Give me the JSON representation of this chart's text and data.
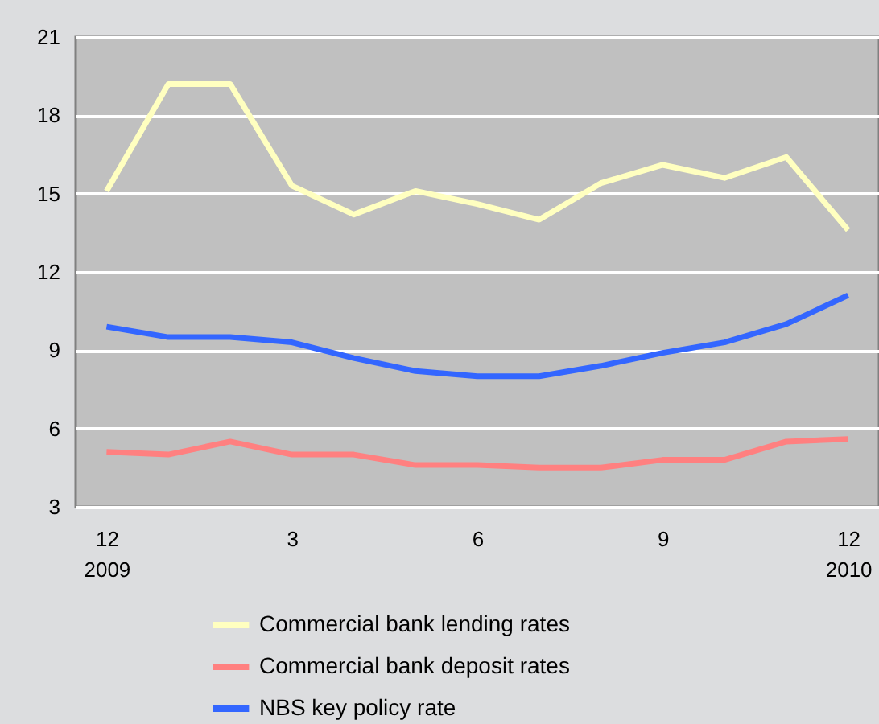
{
  "chart_data": {
    "type": "line",
    "categories": [
      "12\n2009",
      null,
      null,
      "3",
      null,
      null,
      "6",
      null,
      null,
      "9",
      null,
      null,
      "12\n2010"
    ],
    "series": [
      {
        "name": "Commercial bank lending rates",
        "color": "#ffffc0",
        "values": [
          15.1,
          19.2,
          19.2,
          15.3,
          14.2,
          15.1,
          14.6,
          14.0,
          15.4,
          16.1,
          15.6,
          16.4,
          13.6
        ]
      },
      {
        "name": "Commercial bank deposit rates",
        "color": "#ff8080",
        "values": [
          5.1,
          5.0,
          5.5,
          5.0,
          5.0,
          4.6,
          4.6,
          4.5,
          4.5,
          4.8,
          4.8,
          5.5,
          5.6
        ]
      },
      {
        "name": "NBS key policy rate",
        "color": "#3366ff",
        "values": [
          9.9,
          9.5,
          9.5,
          9.3,
          8.7,
          8.2,
          8.0,
          8.0,
          8.4,
          8.9,
          9.3,
          10.0,
          11.1
        ]
      }
    ],
    "ylim": [
      3,
      21
    ],
    "yticks": [
      3,
      6,
      9,
      12,
      15,
      18,
      21
    ],
    "grid": "y",
    "legend": "bottom",
    "marker": "none",
    "line_style": "solid"
  }
}
